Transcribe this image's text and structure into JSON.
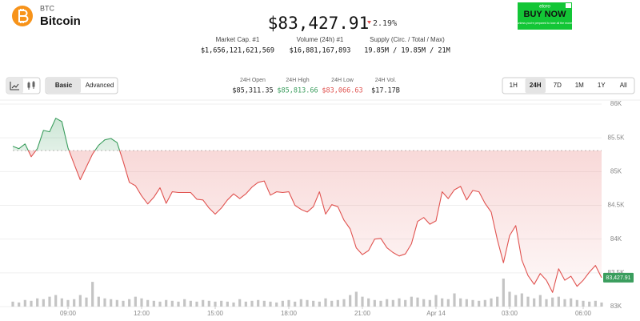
{
  "header": {
    "symbol": "BTC",
    "name": "Bitcoin",
    "price": "$83,427.91",
    "change": "2.19%"
  },
  "stats": [
    {
      "label": "Market Cap. #1",
      "value": "$1,656,121,621,569"
    },
    {
      "label": "Volume (24h) #1",
      "value": "$16,881,167,893"
    },
    {
      "label": "Supply (Circ. / Total / Max)",
      "value": "19.85M / 19.85M / 21M"
    }
  ],
  "ad": {
    "brand": "etoro",
    "cta": "BUY NOW",
    "disclaimer": "Don't invest unless you're prepared to lose all the money you invest."
  },
  "toolbar": {
    "modes": [
      "Basic",
      "Advanced"
    ],
    "active_mode": "Basic",
    "range_stats": [
      {
        "label": "24H Open",
        "value": "$85,311.35"
      },
      {
        "label": "24H High",
        "value": "$85,813.66"
      },
      {
        "label": "24H Low",
        "value": "$83,066.63"
      },
      {
        "label": "24H Vol.",
        "value": "$17.17B"
      }
    ],
    "ranges": [
      "1H",
      "24H",
      "7D",
      "1M",
      "1Y",
      "All"
    ],
    "active_range": "24H"
  },
  "chart_data": {
    "type": "line",
    "up_color": "#3a9d5d",
    "down_color": "#e0524f",
    "volume_color": "#c4c4c4",
    "baseline": 85311.35,
    "price_tag": "83,427.91",
    "xlim": [
      6.75,
      30.75
    ],
    "ylim": [
      83000,
      86000
    ],
    "xticks": [
      {
        "value": 9,
        "label": "09:00"
      },
      {
        "value": 12,
        "label": "12:00"
      },
      {
        "value": 15,
        "label": "15:00"
      },
      {
        "value": 18,
        "label": "18:00"
      },
      {
        "value": 21,
        "label": "21:00"
      },
      {
        "value": 24,
        "label": "Apr 14"
      },
      {
        "value": 27,
        "label": "03:00"
      },
      {
        "value": 30,
        "label": "06:00"
      }
    ],
    "yticks": [
      {
        "value": 83000,
        "label": "83K"
      },
      {
        "value": 83500,
        "label": "83.5K"
      },
      {
        "value": 84000,
        "label": "84K"
      },
      {
        "value": 84500,
        "label": "84.5K"
      },
      {
        "value": 85000,
        "label": "85K"
      },
      {
        "value": 85500,
        "label": "85.5K"
      },
      {
        "value": 86000,
        "label": "86K"
      }
    ],
    "grid": true,
    "x": [
      6.75,
      7,
      7.25,
      7.5,
      7.75,
      8,
      8.25,
      8.5,
      8.75,
      9,
      9.25,
      9.5,
      9.75,
      10,
      10.25,
      10.5,
      10.75,
      11,
      11.25,
      11.5,
      11.75,
      12,
      12.25,
      12.5,
      12.75,
      13,
      13.25,
      13.5,
      13.75,
      14,
      14.25,
      14.5,
      14.75,
      15,
      15.25,
      15.5,
      15.75,
      16,
      16.25,
      16.5,
      16.75,
      17,
      17.25,
      17.5,
      17.75,
      18,
      18.25,
      18.5,
      18.75,
      19,
      19.25,
      19.5,
      19.75,
      20,
      20.25,
      20.5,
      20.75,
      21,
      21.25,
      21.5,
      21.75,
      22,
      22.25,
      22.5,
      22.75,
      23,
      23.25,
      23.5,
      23.75,
      24,
      24.25,
      24.5,
      24.75,
      25,
      25.25,
      25.5,
      25.75,
      26,
      26.25,
      26.5,
      26.75,
      27,
      27.25,
      27.5,
      27.75,
      28,
      28.25,
      28.5,
      28.75,
      29,
      29.25,
      29.5,
      29.75,
      30,
      30.25,
      30.5,
      30.75
    ],
    "values": [
      85375,
      85340,
      85410,
      85220,
      85340,
      85610,
      85590,
      85790,
      85740,
      85350,
      85110,
      84880,
      85070,
      85260,
      85390,
      85470,
      85490,
      85430,
      85150,
      84840,
      84790,
      84640,
      84520,
      84620,
      84760,
      84530,
      84700,
      84690,
      84690,
      84690,
      84590,
      84580,
      84460,
      84370,
      84460,
      84580,
      84670,
      84600,
      84670,
      84770,
      84840,
      84860,
      84650,
      84700,
      84690,
      84700,
      84500,
      84440,
      84400,
      84480,
      84700,
      84370,
      84510,
      84480,
      84280,
      84150,
      83870,
      83770,
      83830,
      84000,
      84010,
      83870,
      83800,
      83750,
      83780,
      83930,
      84260,
      84320,
      84220,
      84270,
      84700,
      84600,
      84730,
      84780,
      84580,
      84720,
      84700,
      84530,
      84400,
      83990,
      83650,
      84050,
      84200,
      83690,
      83460,
      83330,
      83490,
      83390,
      83210,
      83560,
      83390,
      83450,
      83300,
      83390,
      83510,
      83610,
      83427.91
    ],
    "volume": [
      6,
      5,
      8,
      7,
      10,
      9,
      12,
      14,
      10,
      8,
      9,
      14,
      11,
      30,
      12,
      10,
      9,
      8,
      7,
      9,
      12,
      10,
      8,
      7,
      6,
      8,
      7,
      6,
      9,
      7,
      6,
      8,
      7,
      6,
      7,
      6,
      5,
      9,
      6,
      7,
      8,
      7,
      6,
      5,
      7,
      8,
      6,
      9,
      8,
      7,
      6,
      10,
      7,
      8,
      9,
      14,
      18,
      12,
      10,
      8,
      7,
      9,
      8,
      10,
      8,
      12,
      11,
      9,
      8,
      14,
      10,
      9,
      16,
      10,
      9,
      8,
      7,
      8,
      10,
      12,
      34,
      18,
      14,
      16,
      12,
      10,
      14,
      9,
      11,
      12,
      9,
      10,
      8,
      7,
      6,
      7,
      5
    ]
  }
}
